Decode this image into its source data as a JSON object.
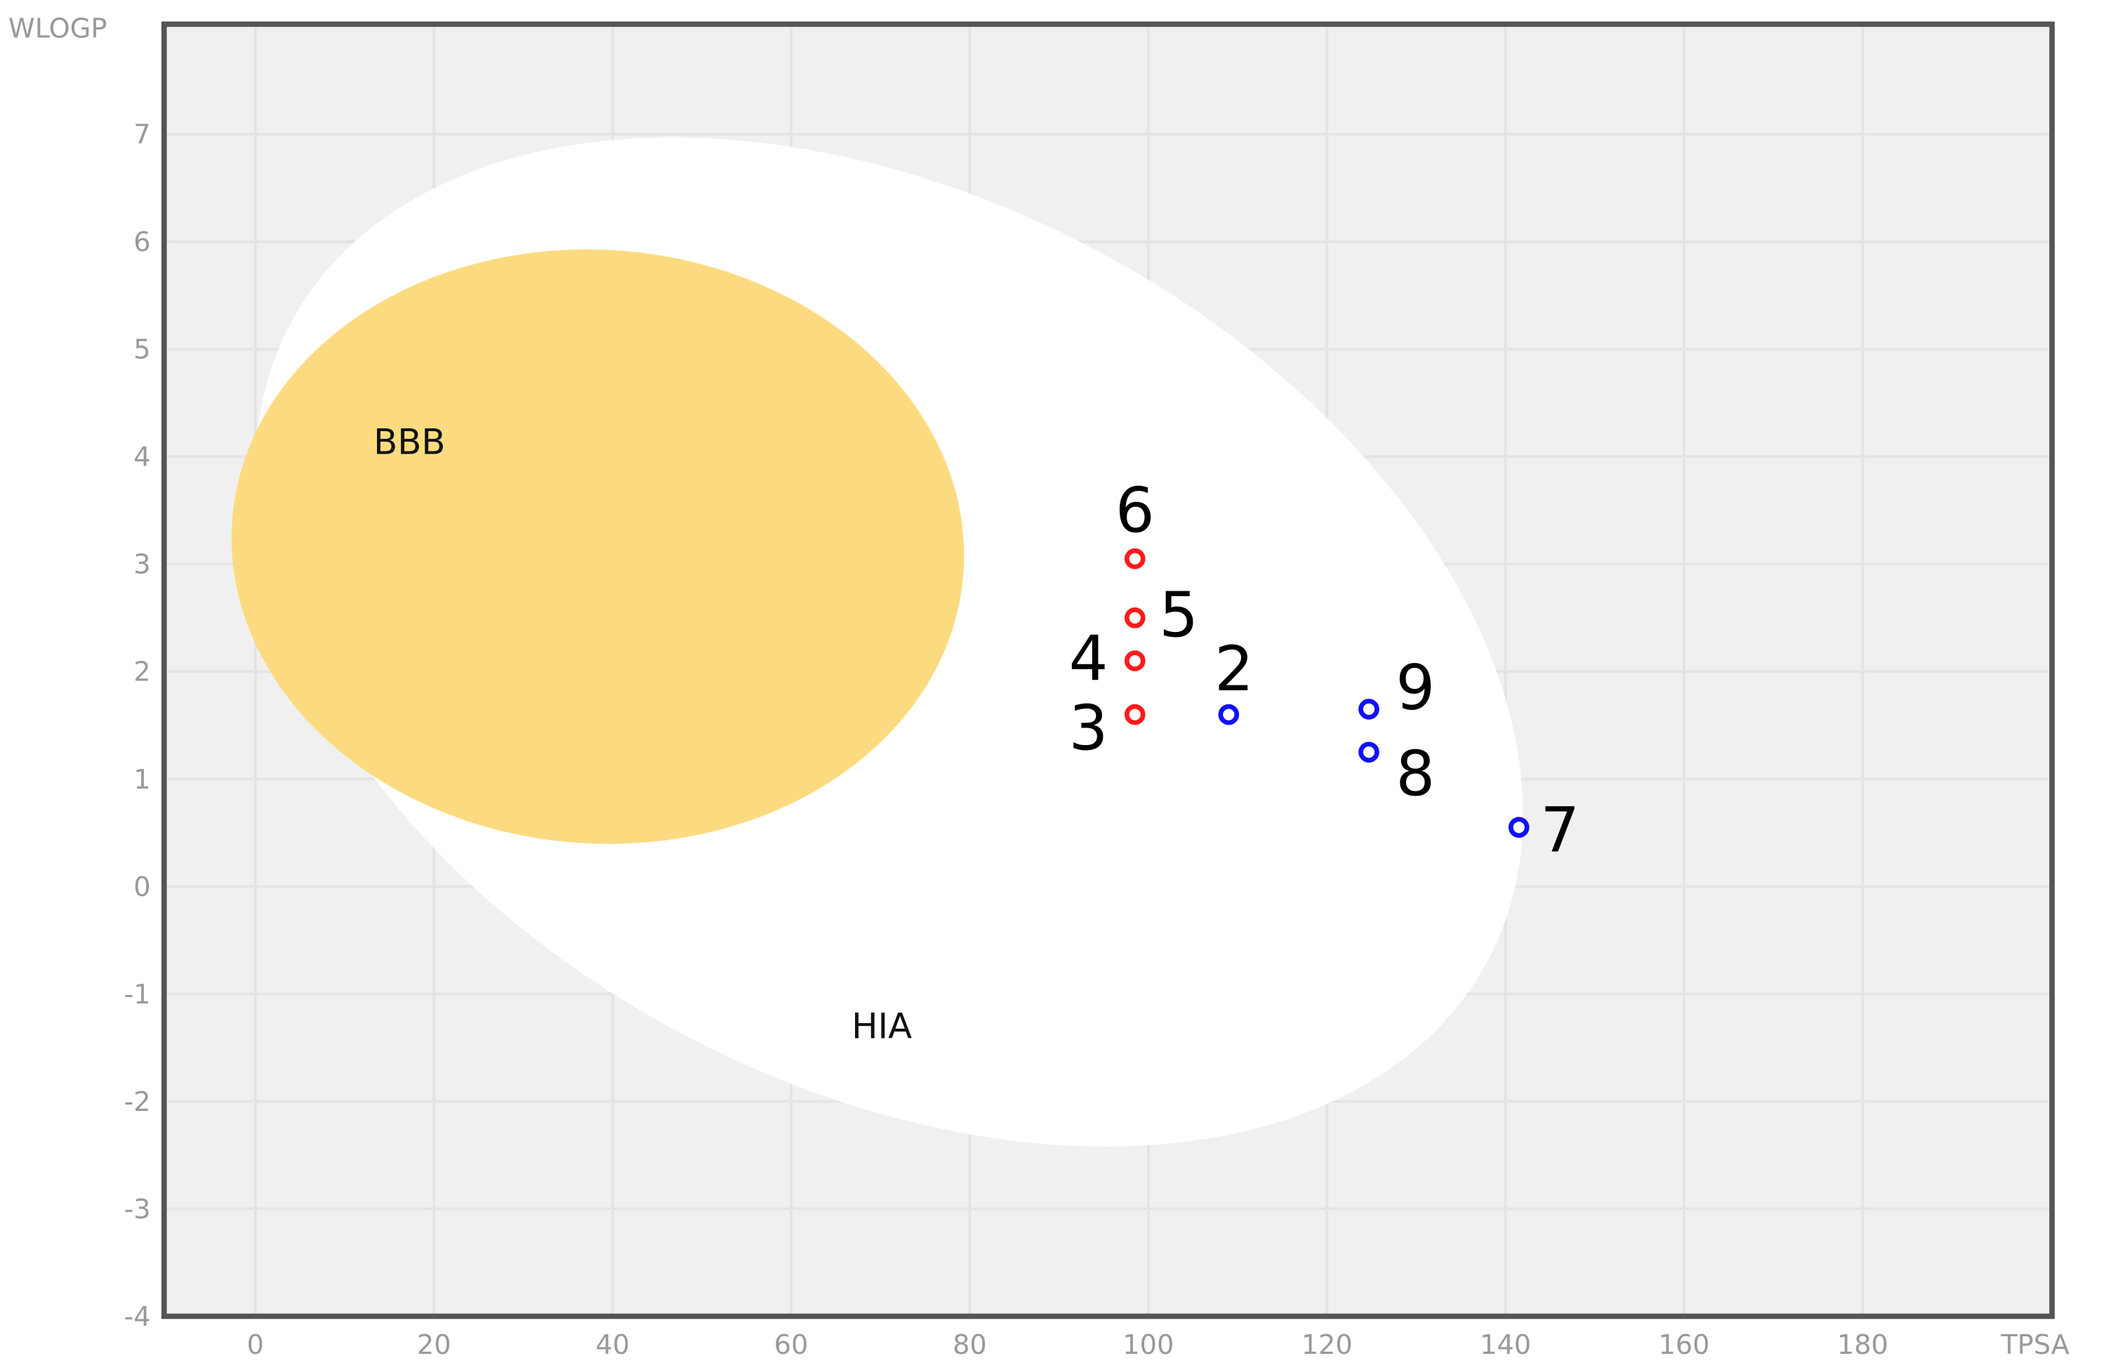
{
  "chart_data": {
    "type": "scatter",
    "title": "",
    "xlabel": "TPSA",
    "ylabel": "WLOGP",
    "xlim": [
      -10,
      200
    ],
    "ylim": [
      -4,
      8
    ],
    "x_ticks": [
      "0",
      "20",
      "40",
      "60",
      "80",
      "100",
      "120",
      "140",
      "160",
      "180"
    ],
    "y_ticks": [
      "-4",
      "-3",
      "-2",
      "-1",
      "0",
      "1",
      "2",
      "3",
      "4",
      "5",
      "6",
      "7"
    ],
    "grid": true,
    "regions": [
      {
        "label": "HIA",
        "color": "#ffffff"
      },
      {
        "label": "BBB",
        "color": "#fcdb80"
      }
    ],
    "points": [
      {
        "label": "2",
        "x": 109,
        "y": 1.6,
        "color": "#1010ff"
      },
      {
        "label": "3",
        "x": 98.5,
        "y": 1.6,
        "color": "#ff1a1a"
      },
      {
        "label": "4",
        "x": 98.5,
        "y": 2.1,
        "color": "#ff1a1a"
      },
      {
        "label": "5",
        "x": 98.5,
        "y": 2.5,
        "color": "#ff1a1a"
      },
      {
        "label": "6",
        "x": 98.5,
        "y": 3.05,
        "color": "#ff1a1a"
      },
      {
        "label": "7",
        "x": 141.5,
        "y": 0.55,
        "color": "#1010ff"
      },
      {
        "label": "8",
        "x": 124.7,
        "y": 1.25,
        "color": "#1010ff"
      },
      {
        "label": "9",
        "x": 124.7,
        "y": 1.65,
        "color": "#1010ff"
      }
    ],
    "background_color": "#f0f0f0"
  }
}
